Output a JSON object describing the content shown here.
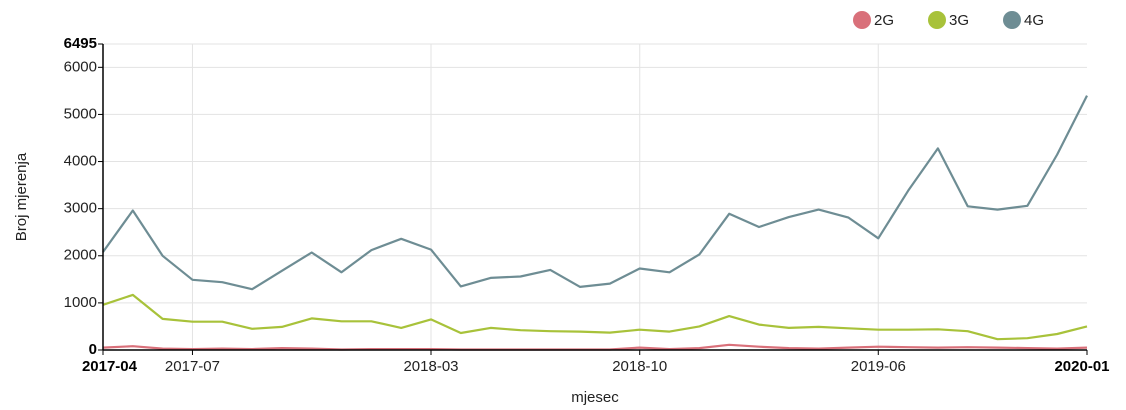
{
  "chart_data": {
    "type": "line",
    "x_label": "mjesec",
    "y_label": "Broj mjerenja",
    "x": [
      "2017-04",
      "2017-05",
      "2017-06",
      "2017-07",
      "2017-08",
      "2017-09",
      "2017-10",
      "2017-11",
      "2017-12",
      "2018-01",
      "2018-02",
      "2018-03",
      "2018-04",
      "2018-05",
      "2018-06",
      "2018-07",
      "2018-08",
      "2018-09",
      "2018-10",
      "2018-11",
      "2018-12",
      "2019-01",
      "2019-02",
      "2019-03",
      "2019-04",
      "2019-05",
      "2019-06",
      "2019-07",
      "2019-08",
      "2019-09",
      "2019-10",
      "2019-11",
      "2019-12",
      "2020-01"
    ],
    "xlim": [
      "2017-04",
      "2020-01"
    ],
    "xticks": [
      "2017-04",
      "2017-07",
      "2018-03",
      "2018-10",
      "2019-06",
      "2020-01"
    ],
    "ylim": [
      0,
      6495
    ],
    "yticks": [
      0,
      1000,
      2000,
      3000,
      4000,
      5000,
      6000,
      6495
    ],
    "grid": true,
    "legend": "top-right",
    "series": [
      {
        "name": "2G",
        "color": "#d9707a",
        "values": [
          50,
          80,
          30,
          20,
          30,
          20,
          40,
          30,
          10,
          20,
          20,
          20,
          10,
          10,
          10,
          10,
          10,
          10,
          50,
          20,
          40,
          110,
          70,
          40,
          30,
          50,
          70,
          60,
          50,
          60,
          50,
          40,
          30,
          50
        ]
      },
      {
        "name": "3G",
        "color": "#a8c23a",
        "values": [
          960,
          1170,
          660,
          600,
          600,
          450,
          490,
          670,
          610,
          610,
          470,
          650,
          360,
          470,
          420,
          400,
          390,
          370,
          430,
          390,
          500,
          720,
          540,
          470,
          490,
          460,
          430,
          430,
          440,
          400,
          230,
          250,
          340,
          500
        ]
      },
      {
        "name": "4G",
        "color": "#6e8d94",
        "values": [
          2080,
          2960,
          2000,
          1490,
          1440,
          1290,
          1680,
          2070,
          1650,
          2120,
          2360,
          2130,
          1350,
          1530,
          1560,
          1700,
          1340,
          1410,
          1730,
          1650,
          2030,
          2890,
          2610,
          2820,
          2980,
          2810,
          2370,
          3380,
          4280,
          3050,
          2980,
          3060,
          4150,
          5400
        ]
      }
    ]
  }
}
